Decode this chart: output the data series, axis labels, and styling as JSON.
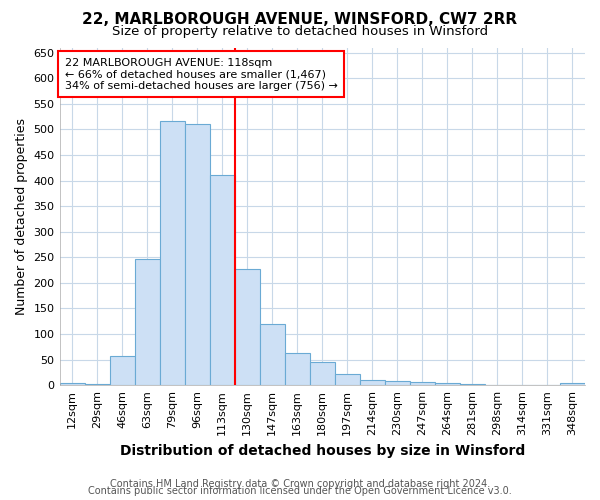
{
  "title": "22, MARLBOROUGH AVENUE, WINSFORD, CW7 2RR",
  "subtitle": "Size of property relative to detached houses in Winsford",
  "xlabel": "Distribution of detached houses by size in Winsford",
  "ylabel": "Number of detached properties",
  "bin_labels": [
    "12sqm",
    "29sqm",
    "46sqm",
    "63sqm",
    "79sqm",
    "96sqm",
    "113sqm",
    "130sqm",
    "147sqm",
    "163sqm",
    "180sqm",
    "197sqm",
    "214sqm",
    "230sqm",
    "247sqm",
    "264sqm",
    "281sqm",
    "298sqm",
    "314sqm",
    "331sqm",
    "348sqm"
  ],
  "bar_values": [
    5,
    3,
    58,
    247,
    516,
    510,
    410,
    228,
    120,
    62,
    45,
    22,
    11,
    9,
    6,
    5,
    2,
    1,
    1,
    1,
    5
  ],
  "bar_color": "#cde0f5",
  "bar_edge_color": "#6aaad4",
  "figure_background_color": "#ffffff",
  "plot_background_color": "#ffffff",
  "grid_color": "#c8d8e8",
  "vline_color": "red",
  "vline_bin_index": 6,
  "annotation_text": "22 MARLBOROUGH AVENUE: 118sqm\n← 66% of detached houses are smaller (1,467)\n34% of semi-detached houses are larger (756) →",
  "annotation_box_color": "white",
  "annotation_box_edge_color": "red",
  "ylim": [
    0,
    660
  ],
  "yticks": [
    0,
    50,
    100,
    150,
    200,
    250,
    300,
    350,
    400,
    450,
    500,
    550,
    600,
    650
  ],
  "footer_text1": "Contains HM Land Registry data © Crown copyright and database right 2024.",
  "footer_text2": "Contains public sector information licensed under the Open Government Licence v3.0.",
  "title_fontsize": 11,
  "subtitle_fontsize": 9.5,
  "xlabel_fontsize": 10,
  "ylabel_fontsize": 9,
  "tick_fontsize": 8,
  "footer_fontsize": 7,
  "annot_fontsize": 8
}
